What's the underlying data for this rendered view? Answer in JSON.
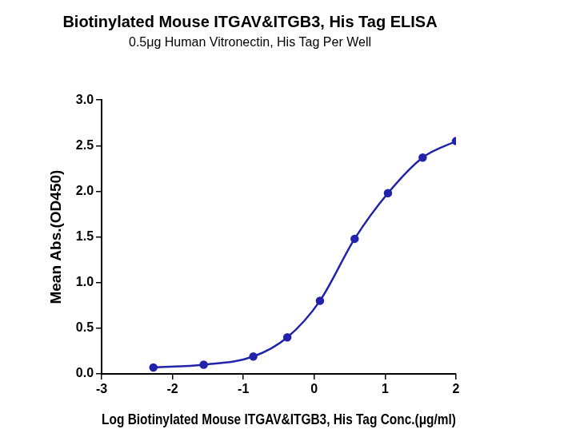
{
  "chart_data": {
    "type": "line",
    "title": "Biotinylated Mouse ITGAV&ITGB3, His Tag ELISA",
    "subtitle": "0.5μg Human Vitronectin, His Tag Per Well",
    "x_label": "Log Biotinylated Mouse ITGAV&ITGB3, His Tag Conc.(μg/ml)",
    "y_label": "Mean Abs.(OD450)",
    "x": [
      -2.27,
      -1.56,
      -0.86,
      -0.38,
      0.08,
      0.57,
      1.04,
      1.53,
      2.0
    ],
    "values": [
      0.07,
      0.1,
      0.19,
      0.4,
      0.8,
      1.48,
      1.98,
      2.37,
      2.55
    ],
    "color": "#2222aa",
    "marker": "circle",
    "line_style": "solid",
    "xlim": [
      -3,
      2
    ],
    "xticks": [
      -3,
      -2,
      -1,
      0,
      1,
      2
    ],
    "ylim": [
      0,
      3
    ],
    "yticks": [
      {
        "value": 0,
        "label": "0.0"
      },
      0.5,
      {
        "value": 1,
        "label": "1.0"
      },
      1.5,
      {
        "value": 2,
        "label": "2.0"
      },
      2.5,
      {
        "value": 3,
        "label": "3.0"
      }
    ],
    "grid": false
  }
}
